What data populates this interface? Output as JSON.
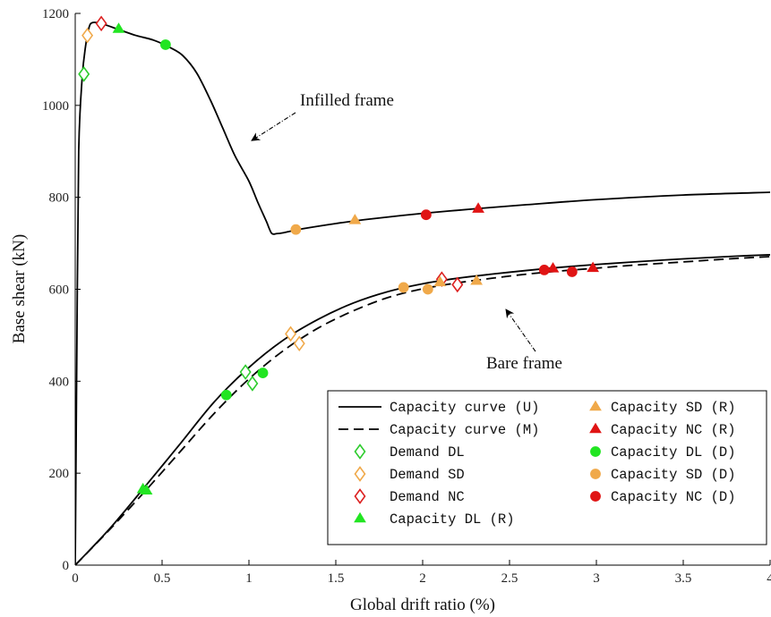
{
  "chart_data": {
    "type": "line",
    "xlabel": "Global drift ratio (%)",
    "ylabel": "Base shear (kN)",
    "xlim": [
      0,
      4
    ],
    "ylim": [
      0,
      1200
    ],
    "xticks": [
      0,
      0.5,
      1,
      1.5,
      2,
      2.5,
      3,
      3.5,
      4
    ],
    "yticks": [
      0,
      200,
      400,
      600,
      800,
      1000,
      1200
    ],
    "xtick_labels": [
      "0",
      "0.5",
      "1",
      "1.5",
      "2",
      "2.5",
      "3",
      "3.5",
      "4"
    ],
    "ytick_labels": [
      "0",
      "200",
      "400",
      "600",
      "800",
      "1000",
      "1200"
    ],
    "grid": false,
    "legend_position": "bottom-right",
    "annotations": [
      {
        "text": "Infilled frame",
        "target": [
          1.0,
          935
        ]
      },
      {
        "text": "Bare frame",
        "target": [
          2.5,
          560
        ]
      }
    ],
    "curves": [
      {
        "name": "Capacity curve (U)",
        "group": "infilled",
        "style": "solid",
        "color": "#000000",
        "x": [
          0,
          0.01,
          0.02,
          0.04,
          0.06,
          0.08,
          0.1,
          0.15,
          0.25,
          0.35,
          0.45,
          0.55,
          0.62,
          0.7,
          0.78,
          0.85,
          0.92,
          1.0,
          1.05,
          1.1,
          1.13,
          1.16,
          1.2,
          1.3,
          1.5,
          1.7,
          2.0,
          2.3,
          2.6,
          3.0,
          3.5,
          4.0
        ],
        "y": [
          0,
          500,
          900,
          1060,
          1130,
          1170,
          1180,
          1178,
          1165,
          1152,
          1142,
          1125,
          1108,
          1070,
          1010,
          950,
          890,
          835,
          790,
          748,
          722,
          721,
          723,
          731,
          743,
          753,
          765,
          775,
          784,
          795,
          805,
          811
        ]
      },
      {
        "name": "Capacity curve (U)",
        "group": "bare",
        "style": "solid",
        "color": "#000000",
        "x": [
          0,
          0.2,
          0.4,
          0.6,
          0.8,
          1.0,
          1.2,
          1.4,
          1.6,
          1.8,
          2.0,
          2.2,
          2.4,
          2.6,
          2.8,
          3.0,
          3.2,
          3.4,
          3.6,
          3.8,
          4.0
        ],
        "y": [
          0,
          80,
          170,
          262,
          355,
          430,
          490,
          535,
          570,
          595,
          612,
          624,
          633,
          641,
          648,
          654,
          659,
          664,
          668,
          672,
          675
        ]
      },
      {
        "name": "Capacity curve (M)",
        "group": "bare",
        "style": "dashed",
        "color": "#000000",
        "x": [
          0,
          0.2,
          0.4,
          0.6,
          0.8,
          1.0,
          1.2,
          1.4,
          1.6,
          1.8,
          2.0,
          2.2,
          2.4,
          2.6,
          2.8,
          3.0,
          3.2,
          3.4,
          3.6,
          3.8,
          4.0
        ],
        "y": [
          0,
          78,
          160,
          245,
          330,
          405,
          467,
          516,
          553,
          582,
          601,
          614,
          624,
          633,
          640,
          646,
          652,
          657,
          662,
          667,
          671
        ]
      }
    ],
    "series": [
      {
        "name": "Demand DL",
        "marker": "diamond-open",
        "color": "#2ecc2e",
        "points": [
          [
            0.05,
            1068
          ],
          [
            0.98,
            420
          ],
          [
            1.02,
            395
          ]
        ]
      },
      {
        "name": "Demand SD",
        "marker": "diamond-open",
        "color": "#f0a94a",
        "points": [
          [
            0.07,
            1152
          ],
          [
            1.24,
            503
          ],
          [
            1.29,
            482
          ]
        ]
      },
      {
        "name": "Demand NC",
        "marker": "diamond-open",
        "color": "#dc2020",
        "points": [
          [
            0.15,
            1178
          ],
          [
            2.11,
            622
          ],
          [
            2.2,
            610
          ]
        ]
      },
      {
        "name": "Capacity DL (R)",
        "marker": "triangle",
        "color": "#22e522",
        "points": [
          [
            0.25,
            1166
          ],
          [
            0.39,
            165
          ],
          [
            0.41,
            162
          ]
        ]
      },
      {
        "name": "Capacity SD (R)",
        "marker": "triangle",
        "color": "#f0a94a",
        "points": [
          [
            1.61,
            750
          ],
          [
            2.1,
            615
          ],
          [
            2.31,
            618
          ]
        ]
      },
      {
        "name": "Capacity NC (R)",
        "marker": "triangle",
        "color": "#e01414",
        "points": [
          [
            2.32,
            775
          ],
          [
            2.75,
            645
          ],
          [
            2.98,
            646
          ]
        ]
      },
      {
        "name": "Capacity DL (D)",
        "marker": "circle",
        "color": "#22e522",
        "points": [
          [
            0.52,
            1132
          ],
          [
            0.87,
            370
          ],
          [
            1.08,
            418
          ]
        ]
      },
      {
        "name": "Capacity SD (D)",
        "marker": "circle",
        "color": "#f0a94a",
        "points": [
          [
            1.27,
            730
          ],
          [
            1.89,
            604
          ],
          [
            2.03,
            600
          ]
        ]
      },
      {
        "name": "Capacity NC (D)",
        "marker": "circle",
        "color": "#e01414",
        "points": [
          [
            2.02,
            762
          ],
          [
            2.7,
            642
          ],
          [
            2.86,
            638
          ]
        ]
      }
    ],
    "legend": {
      "columns": [
        [
          {
            "label": "Capacity curve (U)",
            "key": "line-solid",
            "color": "#000000"
          },
          {
            "label": "Capacity curve (M)",
            "key": "line-dashed",
            "color": "#000000"
          },
          {
            "label": "Demand DL",
            "key": "diamond-open",
            "color": "#2ecc2e"
          },
          {
            "label": "Demand SD",
            "key": "diamond-open",
            "color": "#f0a94a"
          },
          {
            "label": "Demand NC",
            "key": "diamond-open",
            "color": "#dc2020"
          },
          {
            "label": "Capacity DL (R)",
            "key": "triangle",
            "color": "#22e522"
          }
        ],
        [
          {
            "label": "Capacity SD (R)",
            "key": "triangle",
            "color": "#f0a94a"
          },
          {
            "label": "Capacity NC (R)",
            "key": "triangle",
            "color": "#e01414"
          },
          {
            "label": "Capacity DL (D)",
            "key": "circle",
            "color": "#22e522"
          },
          {
            "label": "Capacity SD (D)",
            "key": "circle",
            "color": "#f0a94a"
          },
          {
            "label": "Capacity NC (D)",
            "key": "circle",
            "color": "#e01414"
          }
        ]
      ]
    }
  }
}
